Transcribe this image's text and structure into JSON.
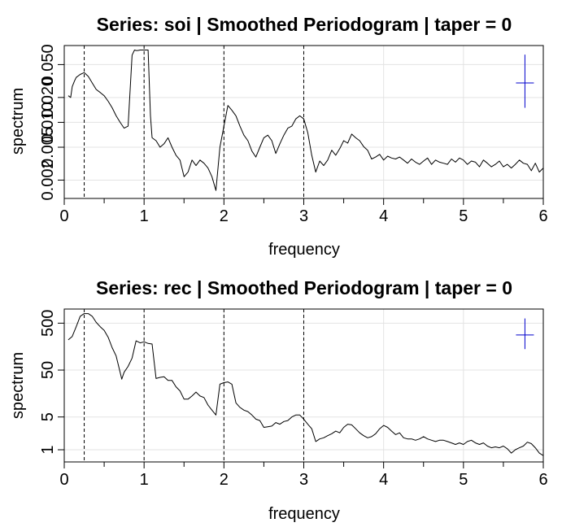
{
  "chart_data": [
    {
      "type": "line",
      "title": "Series: soi  |  Smoothed Periodogram  |  taper = 0",
      "xlabel": "frequency",
      "ylabel": "spectrum",
      "xlim": [
        0,
        6
      ],
      "ylim": [
        0.0012,
        0.085
      ],
      "yscale": "log",
      "xticks": [
        "0",
        "1",
        "2",
        "3",
        "4",
        "5",
        "6"
      ],
      "yticks": [
        {
          "value": 0.002,
          "label": "0.002"
        },
        {
          "value": 0.005,
          "label": "0.005"
        },
        {
          "value": 0.01,
          "label": "0.010"
        },
        {
          "value": 0.02,
          "label": "0.020"
        },
        {
          "value": 0.05,
          "label": "0.050"
        }
      ],
      "grid": true,
      "vlines": [
        0.25,
        1,
        2,
        3
      ],
      "ci_marker": {
        "x": 5.77,
        "y": 0.03,
        "lower": 0.015,
        "upper": 0.066,
        "color": "#0000cc"
      },
      "series": [
        {
          "x": [
            0.05,
            0.08,
            0.1,
            0.13,
            0.15,
            0.2,
            0.25,
            0.3,
            0.35,
            0.4,
            0.45,
            0.5,
            0.55,
            0.6,
            0.65,
            0.7,
            0.75,
            0.8,
            0.85,
            0.88,
            0.9,
            0.92,
            0.95,
            1.0,
            1.05,
            1.08,
            1.1,
            1.15,
            1.2,
            1.25,
            1.3,
            1.35,
            1.4,
            1.45,
            1.5,
            1.55,
            1.6,
            1.65,
            1.7,
            1.75,
            1.8,
            1.85,
            1.9,
            1.95,
            2.0,
            2.05,
            2.1,
            2.15,
            2.2,
            2.25,
            2.3,
            2.35,
            2.4,
            2.45,
            2.5,
            2.55,
            2.6,
            2.65,
            2.7,
            2.75,
            2.8,
            2.85,
            2.9,
            2.95,
            3.0,
            3.05,
            3.1,
            3.15,
            3.2,
            3.25,
            3.3,
            3.35,
            3.4,
            3.45,
            3.5,
            3.55,
            3.6,
            3.65,
            3.7,
            3.75,
            3.8,
            3.85,
            3.9,
            3.95,
            4.0,
            4.05,
            4.1,
            4.15,
            4.2,
            4.25,
            4.3,
            4.35,
            4.4,
            4.45,
            4.5,
            4.55,
            4.6,
            4.65,
            4.7,
            4.75,
            4.8,
            4.85,
            4.9,
            4.95,
            5.0,
            5.05,
            5.1,
            5.15,
            5.2,
            5.25,
            5.3,
            5.35,
            5.4,
            5.45,
            5.5,
            5.55,
            5.6,
            5.65,
            5.7,
            5.75,
            5.8,
            5.85,
            5.9,
            5.95,
            6.0
          ],
          "y": [
            0.021,
            0.02,
            0.027,
            0.032,
            0.035,
            0.038,
            0.04,
            0.036,
            0.03,
            0.025,
            0.023,
            0.021,
            0.018,
            0.015,
            0.012,
            0.01,
            0.0085,
            0.009,
            0.065,
            0.075,
            0.074,
            0.074,
            0.075,
            0.075,
            0.075,
            0.012,
            0.0065,
            0.006,
            0.005,
            0.0055,
            0.0065,
            0.005,
            0.004,
            0.0035,
            0.0022,
            0.0025,
            0.0035,
            0.003,
            0.0035,
            0.0032,
            0.0028,
            0.0022,
            0.0015,
            0.005,
            0.009,
            0.016,
            0.014,
            0.012,
            0.009,
            0.007,
            0.006,
            0.0045,
            0.0038,
            0.005,
            0.0065,
            0.007,
            0.006,
            0.0042,
            0.0055,
            0.007,
            0.0085,
            0.009,
            0.011,
            0.012,
            0.011,
            0.0075,
            0.004,
            0.0025,
            0.0034,
            0.003,
            0.0035,
            0.0046,
            0.004,
            0.0048,
            0.006,
            0.0056,
            0.0072,
            0.0065,
            0.006,
            0.0051,
            0.0046,
            0.0036,
            0.0038,
            0.0041,
            0.0035,
            0.0039,
            0.0037,
            0.0036,
            0.0038,
            0.0035,
            0.0032,
            0.0036,
            0.0033,
            0.0031,
            0.0034,
            0.0037,
            0.0031,
            0.0035,
            0.0033,
            0.0032,
            0.0031,
            0.0036,
            0.0033,
            0.0037,
            0.0035,
            0.0031,
            0.0034,
            0.0033,
            0.0029,
            0.0035,
            0.0032,
            0.0029,
            0.0031,
            0.0034,
            0.0029,
            0.0031,
            0.0028,
            0.0031,
            0.0035,
            0.0032,
            0.0031,
            0.0026,
            0.0032,
            0.0025,
            0.0028
          ]
        }
      ]
    },
    {
      "type": "line",
      "title": "Series: rec  |  Smoothed Periodogram  |  taper = 0",
      "xlabel": "frequency",
      "ylabel": "spectrum",
      "xlim": [
        0,
        6
      ],
      "ylim": [
        0.55,
        1000
      ],
      "yscale": "log",
      "xticks": [
        "0",
        "1",
        "2",
        "3",
        "4",
        "5",
        "6"
      ],
      "yticks": [
        {
          "value": 1,
          "label": "1"
        },
        {
          "value": 5,
          "label": "5"
        },
        {
          "value": 50,
          "label": "50"
        },
        {
          "value": 500,
          "label": "500"
        }
      ],
      "grid": true,
      "vlines": [
        0.25,
        1,
        2,
        3
      ],
      "ci_marker": {
        "x": 5.77,
        "y": 280,
        "lower": 140,
        "upper": 630,
        "color": "#0000cc"
      },
      "series": [
        {
          "x": [
            0.05,
            0.1,
            0.15,
            0.2,
            0.25,
            0.3,
            0.35,
            0.4,
            0.45,
            0.5,
            0.55,
            0.6,
            0.65,
            0.7,
            0.72,
            0.75,
            0.8,
            0.85,
            0.9,
            0.95,
            1.0,
            1.05,
            1.1,
            1.15,
            1.2,
            1.25,
            1.3,
            1.35,
            1.4,
            1.45,
            1.5,
            1.55,
            1.6,
            1.65,
            1.7,
            1.75,
            1.8,
            1.85,
            1.9,
            1.95,
            2.0,
            2.05,
            2.1,
            2.15,
            2.2,
            2.25,
            2.3,
            2.35,
            2.4,
            2.45,
            2.5,
            2.55,
            2.6,
            2.65,
            2.7,
            2.75,
            2.8,
            2.85,
            2.9,
            2.95,
            3.0,
            3.05,
            3.1,
            3.15,
            3.2,
            3.25,
            3.3,
            3.35,
            3.4,
            3.45,
            3.5,
            3.55,
            3.6,
            3.65,
            3.7,
            3.75,
            3.8,
            3.85,
            3.9,
            3.95,
            4.0,
            4.05,
            4.1,
            4.15,
            4.2,
            4.25,
            4.3,
            4.35,
            4.4,
            4.45,
            4.5,
            4.55,
            4.6,
            4.65,
            4.7,
            4.75,
            4.8,
            4.85,
            4.9,
            4.95,
            5.0,
            5.05,
            5.1,
            5.15,
            5.2,
            5.25,
            5.3,
            5.35,
            5.4,
            5.45,
            5.5,
            5.55,
            5.6,
            5.65,
            5.7,
            5.75,
            5.8,
            5.85,
            5.9,
            5.95,
            6.0
          ],
          "y": [
            220,
            260,
            420,
            700,
            800,
            800,
            700,
            520,
            420,
            350,
            250,
            150,
            100,
            45,
            32,
            45,
            60,
            90,
            210,
            190,
            200,
            185,
            180,
            33,
            35,
            36,
            30,
            30,
            22,
            18,
            12,
            12,
            14,
            17,
            14,
            13,
            9,
            7,
            5.5,
            25,
            27,
            28,
            25,
            10,
            8,
            7,
            6.5,
            5.5,
            4.5,
            4.2,
            3,
            3.1,
            3.2,
            3.8,
            3.5,
            4,
            4.2,
            5,
            5.5,
            5.5,
            4.5,
            3.5,
            2.8,
            1.5,
            1.7,
            1.8,
            2,
            2.2,
            2.5,
            2.3,
            3,
            3.5,
            3.4,
            2.8,
            2.3,
            2,
            1.8,
            1.9,
            2.2,
            2.8,
            3.3,
            3,
            2.5,
            2.1,
            2.3,
            1.8,
            1.7,
            1.7,
            1.6,
            1.7,
            1.9,
            1.7,
            1.6,
            1.5,
            1.6,
            1.6,
            1.5,
            1.4,
            1.3,
            1.4,
            1.3,
            1.5,
            1.6,
            1.4,
            1.3,
            1.4,
            1.2,
            1.1,
            1.15,
            1.1,
            1.2,
            1.05,
            0.85,
            1.0,
            1.1,
            1.2,
            1.45,
            1.35,
            1.1,
            0.85,
            0.75
          ]
        }
      ]
    }
  ]
}
